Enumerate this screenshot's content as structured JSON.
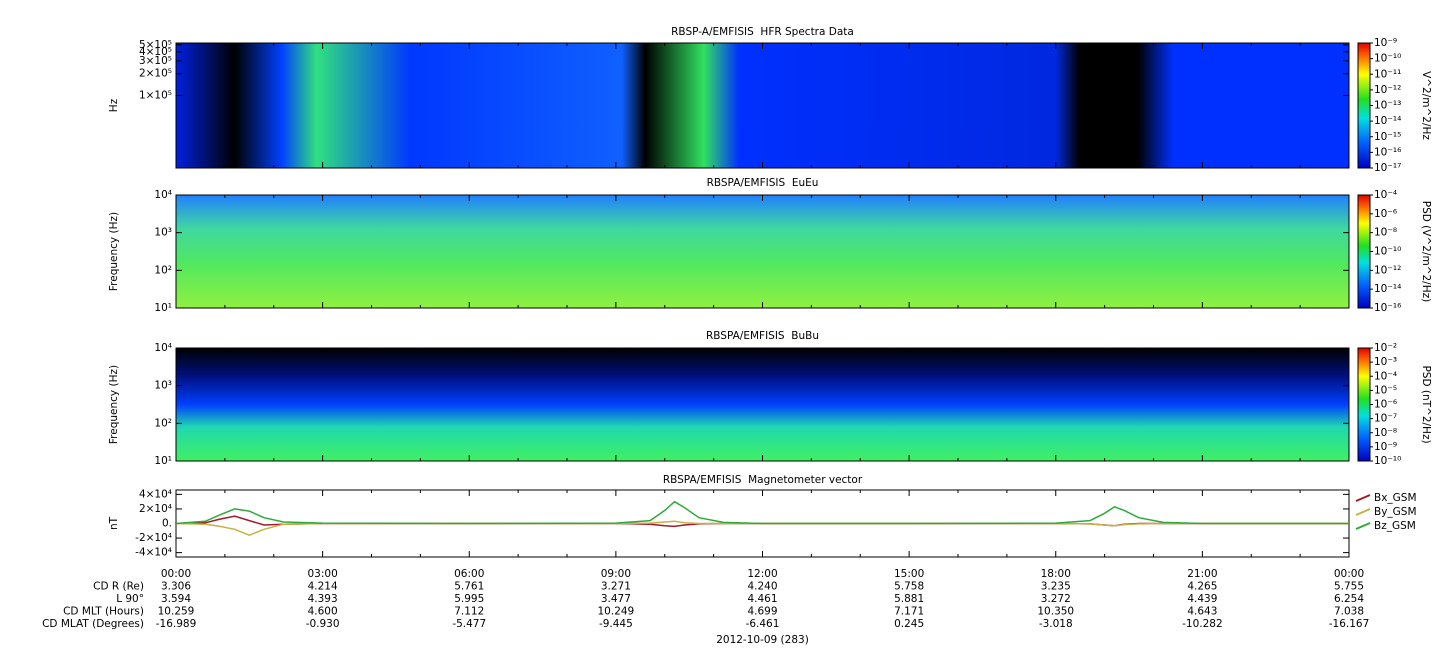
{
  "chart_data": [
    {
      "type": "spectrogram",
      "title": "RBSP-A/EMFISIS  HFR Spectra Data",
      "ylabel": "Hz",
      "ylog": true,
      "ylim": [
        10000,
        530000
      ],
      "yticks": [
        {
          "value": 100000,
          "label": "1×10⁵"
        },
        {
          "value": 200000,
          "label": "2×10⁵"
        },
        {
          "value": 300000,
          "label": "3×10⁵"
        },
        {
          "value": 400000,
          "label": "4×10⁵"
        },
        {
          "value": 500000,
          "label": "5×10⁵"
        }
      ],
      "colorbar": {
        "label": "V^2/m^2/Hz",
        "lim": [
          1e-17,
          1e-09
        ],
        "ticks": [
          {
            "value": 1e-09,
            "label": "10⁻⁹"
          },
          {
            "value": 1e-10,
            "label": "10⁻¹⁰"
          },
          {
            "value": 1e-11,
            "label": "10⁻¹¹"
          },
          {
            "value": 1e-12,
            "label": "10⁻¹²"
          },
          {
            "value": 1e-13,
            "label": "10⁻¹³"
          },
          {
            "value": 1e-14,
            "label": "10⁻¹⁴"
          },
          {
            "value": 1e-15,
            "label": "10⁻¹⁵"
          },
          {
            "value": 1e-16,
            "label": "10⁻¹⁶"
          },
          {
            "value": 1e-17,
            "label": "10⁻¹⁷"
          }
        ]
      }
    },
    {
      "type": "spectrogram",
      "title": "RBSPA/EMFISIS  EuEu",
      "ylabel": "Frequency (Hz)",
      "ylog": true,
      "ylim": [
        10,
        10000
      ],
      "yticks": [
        {
          "value": 10000,
          "label": "10⁴"
        },
        {
          "value": 1000,
          "label": "10³"
        },
        {
          "value": 100,
          "label": "10²"
        },
        {
          "value": 10,
          "label": "10¹"
        }
      ],
      "colorbar": {
        "label": "PSD (V^2/m^2/Hz)",
        "lim": [
          1e-16,
          0.0001
        ],
        "ticks": [
          {
            "value": 0.0001,
            "label": "10⁻⁴"
          },
          {
            "value": 1e-06,
            "label": "10⁻⁶"
          },
          {
            "value": 1e-08,
            "label": "10⁻⁸"
          },
          {
            "value": 1e-10,
            "label": "10⁻¹⁰"
          },
          {
            "value": 1e-12,
            "label": "10⁻¹²"
          },
          {
            "value": 1e-14,
            "label": "10⁻¹⁴"
          },
          {
            "value": 1e-16,
            "label": "10⁻¹⁶"
          }
        ]
      }
    },
    {
      "type": "spectrogram",
      "title": "RBSPA/EMFISIS  BuBu",
      "ylabel": "Frequency (Hz)",
      "ylog": true,
      "ylim": [
        10,
        10000
      ],
      "yticks": [
        {
          "value": 10000,
          "label": "10⁴"
        },
        {
          "value": 1000,
          "label": "10³"
        },
        {
          "value": 100,
          "label": "10²"
        },
        {
          "value": 10,
          "label": "10¹"
        }
      ],
      "colorbar": {
        "label": "PSD (nT^2/Hz)",
        "lim": [
          1e-10,
          0.01
        ],
        "ticks": [
          {
            "value": 0.01,
            "label": "10⁻²"
          },
          {
            "value": 0.001,
            "label": "10⁻³"
          },
          {
            "value": 0.0001,
            "label": "10⁻⁴"
          },
          {
            "value": 1e-05,
            "label": "10⁻⁵"
          },
          {
            "value": 1e-06,
            "label": "10⁻⁶"
          },
          {
            "value": 1e-07,
            "label": "10⁻⁷"
          },
          {
            "value": 1e-08,
            "label": "10⁻⁸"
          },
          {
            "value": 1e-09,
            "label": "10⁻⁹"
          },
          {
            "value": 1e-10,
            "label": "10⁻¹⁰"
          }
        ]
      }
    },
    {
      "type": "line",
      "title": "RBSPA/EMFISIS  Magnetometer vector",
      "ylabel": "nT",
      "ylim": [
        -46000,
        46000
      ],
      "yticks": [
        {
          "value": 40000,
          "label": "4×10⁴"
        },
        {
          "value": 20000,
          "label": "2×10⁴"
        },
        {
          "value": 0,
          "label": "0."
        },
        {
          "value": -20000,
          "label": "-2×10⁴"
        },
        {
          "value": -40000,
          "label": "-4×10⁴"
        }
      ],
      "xlim": [
        0,
        24
      ],
      "xticks": [
        {
          "value": 0,
          "label": "00:00"
        },
        {
          "value": 3,
          "label": "03:00"
        },
        {
          "value": 6,
          "label": "06:00"
        },
        {
          "value": 9,
          "label": "09:00"
        },
        {
          "value": 12,
          "label": "12:00"
        },
        {
          "value": 15,
          "label": "15:00"
        },
        {
          "value": 18,
          "label": "18:00"
        },
        {
          "value": 21,
          "label": "21:00"
        },
        {
          "value": 24,
          "label": "00:00"
        }
      ],
      "xlabel": "2012-10-09 (283)",
      "x": [
        0,
        0.6,
        0.9,
        1.2,
        1.5,
        1.8,
        2.2,
        3,
        6,
        9,
        9.7,
        10,
        10.2,
        10.4,
        10.7,
        11.2,
        12,
        15,
        18,
        18.7,
        19,
        19.2,
        19.4,
        19.7,
        20.2,
        21,
        24
      ],
      "series": [
        {
          "name": "Bx_GSM",
          "color": "#a01c28",
          "values": [
            0,
            1000,
            6000,
            10000,
            4000,
            -2000,
            -1000,
            0,
            0,
            0,
            -1000,
            -3000,
            -4000,
            -2000,
            -500,
            0,
            0,
            0,
            0,
            -500,
            -2000,
            -3000,
            -1000,
            0,
            0,
            0,
            0
          ]
        },
        {
          "name": "By_GSM",
          "color": "#c8b048",
          "values": [
            0,
            -1000,
            -4000,
            -8000,
            -16000,
            -8000,
            -1000,
            0,
            0,
            0,
            500,
            2000,
            3000,
            1000,
            0,
            0,
            0,
            0,
            0,
            -500,
            -2000,
            -3000,
            -1500,
            -500,
            0,
            0,
            0
          ]
        },
        {
          "name": "Bz_GSM",
          "color": "#2eaa3a",
          "values": [
            0,
            3000,
            12000,
            20000,
            17000,
            8000,
            2000,
            500,
            0,
            500,
            4000,
            18000,
            30000,
            22000,
            8000,
            1500,
            0,
            0,
            500,
            4000,
            14000,
            23000,
            18000,
            8000,
            1500,
            0,
            0
          ]
        }
      ],
      "ephemeris": [
        {
          "label": "CD R (Re)",
          "values": [
            "3.306",
            "4.214",
            "5.761",
            "3.271",
            "4.240",
            "5.758",
            "3.235",
            "4.265",
            "5.755"
          ]
        },
        {
          "label": "L 90°",
          "values": [
            "3.594",
            "4.393",
            "5.995",
            "3.477",
            "4.461",
            "5.881",
            "3.272",
            "4.439",
            "6.254"
          ]
        },
        {
          "label": "CD MLT (Hours)",
          "values": [
            "10.259",
            "4.600",
            "7.112",
            "10.249",
            "4.699",
            "7.171",
            "10.350",
            "4.643",
            "7.038"
          ]
        },
        {
          "label": "CD MLAT (Degrees)",
          "values": [
            "-16.989",
            "-0.930",
            "-5.477",
            "-9.445",
            "-6.461",
            "0.245",
            "-3.018",
            "-10.282",
            "-16.167"
          ]
        }
      ]
    }
  ]
}
